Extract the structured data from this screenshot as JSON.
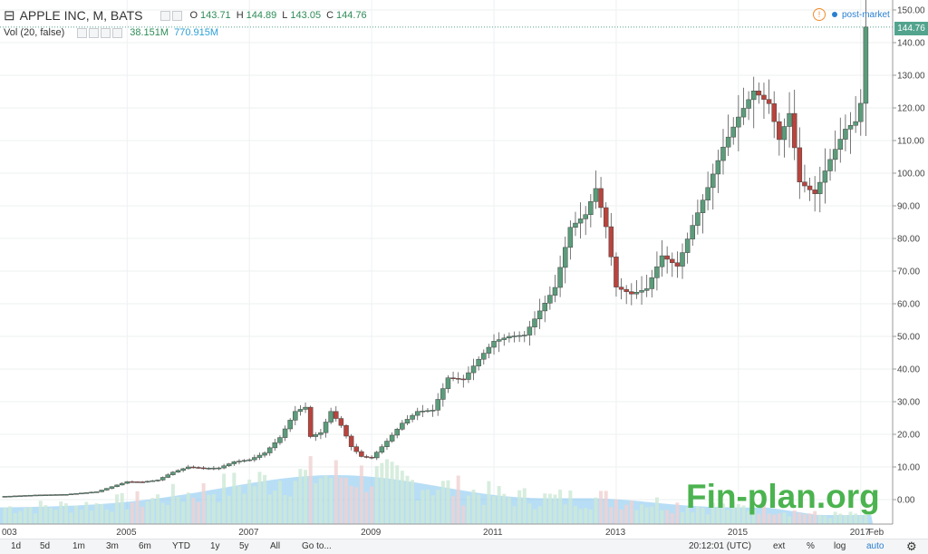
{
  "header": {
    "symbol": "APPLE INC, M, BATS",
    "ohlc": {
      "o_label": "O",
      "o": "143.71",
      "h_label": "H",
      "h": "144.89",
      "l_label": "L",
      "l": "143.05",
      "c_label": "C",
      "c": "144.76"
    },
    "volume_label": "Vol (20, false)",
    "volume_value": "38.151M",
    "volume_ma": "770.915M",
    "warn_icon": "!",
    "post_market": "post-market",
    "last_price": "144.76"
  },
  "watermark": "Fin-plan.org",
  "toolbar": {
    "ranges": [
      "1d",
      "5d",
      "1m",
      "3m",
      "6m",
      "YTD",
      "1y",
      "5y",
      "All"
    ],
    "goto": "Go to...",
    "time": "20:12:01 (UTC)",
    "right": [
      "ext",
      "%",
      "log",
      "auto"
    ]
  },
  "colors": {
    "up": "#5b9c7a",
    "down": "#b8443d",
    "volume": "#7ec3ef",
    "volume_up": "#cde8d6",
    "volume_down": "#f0d1d1",
    "accent": "#2a7fd0"
  },
  "chart_data": {
    "type": "candlestick",
    "title": "APPLE INC, M, BATS",
    "interval": "monthly",
    "xlabel": "",
    "ylabel": "",
    "ylim": [
      -5,
      150
    ],
    "y_ticks": [
      "0.00",
      "10.00",
      "20.00",
      "30.00",
      "40.00",
      "50.00",
      "60.00",
      "70.00",
      "80.00",
      "90.00",
      "100.00",
      "110.00",
      "120.00",
      "130.00",
      "140.00",
      "150.00"
    ],
    "x_ticks": [
      "003",
      "2005",
      "2007",
      "2009",
      "2011",
      "2013",
      "2015",
      "2017",
      "Feb"
    ],
    "x_range": [
      "2003-01",
      "2017-02"
    ],
    "last_close": 144.76,
    "closes": [
      {
        "date": "2003-01",
        "c": 1.0
      },
      {
        "date": "2003-07",
        "c": 1.4
      },
      {
        "date": "2004-01",
        "c": 1.6
      },
      {
        "date": "2004-07",
        "c": 2.4
      },
      {
        "date": "2005-01",
        "c": 5.5
      },
      {
        "date": "2005-04",
        "c": 5.4
      },
      {
        "date": "2005-07",
        "c": 6.0
      },
      {
        "date": "2005-10",
        "c": 8.4
      },
      {
        "date": "2006-01",
        "c": 10.0
      },
      {
        "date": "2006-04",
        "c": 9.6
      },
      {
        "date": "2006-07",
        "c": 9.7
      },
      {
        "date": "2006-10",
        "c": 11.6
      },
      {
        "date": "2007-01",
        "c": 12.2
      },
      {
        "date": "2007-04",
        "c": 14.3
      },
      {
        "date": "2007-07",
        "c": 19.0
      },
      {
        "date": "2007-10",
        "c": 27.0
      },
      {
        "date": "2007-12",
        "c": 28.3
      },
      {
        "date": "2008-01",
        "c": 19.3
      },
      {
        "date": "2008-03",
        "c": 20.5
      },
      {
        "date": "2008-05",
        "c": 27.0
      },
      {
        "date": "2008-07",
        "c": 22.7
      },
      {
        "date": "2008-09",
        "c": 16.2
      },
      {
        "date": "2008-11",
        "c": 13.2
      },
      {
        "date": "2009-01",
        "c": 12.8
      },
      {
        "date": "2009-04",
        "c": 17.9
      },
      {
        "date": "2009-07",
        "c": 23.4
      },
      {
        "date": "2009-10",
        "c": 27.0
      },
      {
        "date": "2010-01",
        "c": 27.4
      },
      {
        "date": "2010-04",
        "c": 37.3
      },
      {
        "date": "2010-07",
        "c": 36.8
      },
      {
        "date": "2010-10",
        "c": 43.0
      },
      {
        "date": "2011-01",
        "c": 48.5
      },
      {
        "date": "2011-04",
        "c": 50.0
      },
      {
        "date": "2011-07",
        "c": 50.4
      },
      {
        "date": "2011-10",
        "c": 57.8
      },
      {
        "date": "2012-01",
        "c": 65.0
      },
      {
        "date": "2012-04",
        "c": 83.4
      },
      {
        "date": "2012-07",
        "c": 87.3
      },
      {
        "date": "2012-09",
        "c": 95.3
      },
      {
        "date": "2012-11",
        "c": 83.6
      },
      {
        "date": "2013-01",
        "c": 65.1
      },
      {
        "date": "2013-04",
        "c": 63.0
      },
      {
        "date": "2013-07",
        "c": 64.6
      },
      {
        "date": "2013-10",
        "c": 74.7
      },
      {
        "date": "2014-01",
        "c": 71.5
      },
      {
        "date": "2014-04",
        "c": 84.0
      },
      {
        "date": "2014-07",
        "c": 95.6
      },
      {
        "date": "2014-10",
        "c": 108.0
      },
      {
        "date": "2015-01",
        "c": 117.2
      },
      {
        "date": "2015-04",
        "c": 125.2
      },
      {
        "date": "2015-07",
        "c": 121.3
      },
      {
        "date": "2015-09",
        "c": 110.3
      },
      {
        "date": "2015-11",
        "c": 118.3
      },
      {
        "date": "2016-01",
        "c": 97.3
      },
      {
        "date": "2016-04",
        "c": 93.7
      },
      {
        "date": "2016-07",
        "c": 104.2
      },
      {
        "date": "2016-10",
        "c": 113.5
      },
      {
        "date": "2016-12",
        "c": 115.8
      },
      {
        "date": "2017-01",
        "c": 121.4
      },
      {
        "date": "2017-02",
        "c": 144.76
      }
    ]
  }
}
